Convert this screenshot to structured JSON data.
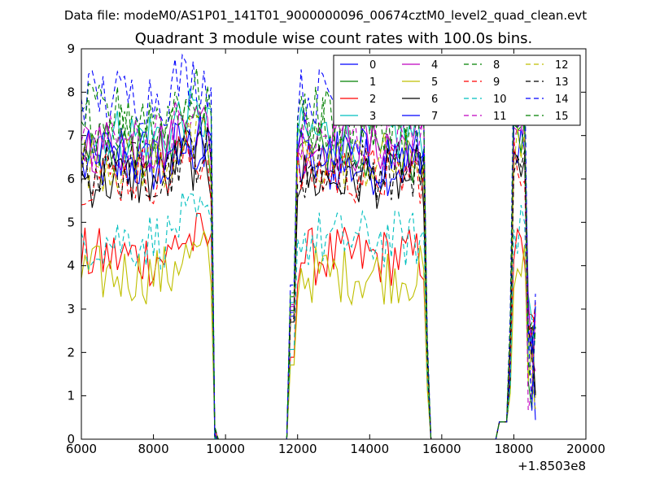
{
  "header": "Data file: modeM0/AS1P01_141T01_9000000096_00674cztM0_level2_quad_clean.evt",
  "chart_data": {
    "type": "line",
    "title": "Quadrant 3 module wise count rates with 100.0s bins.",
    "xlabel": "",
    "ylabel": "",
    "xlim": [
      6000,
      20000
    ],
    "ylim": [
      0,
      9
    ],
    "x_offset_label": "+1.8503e8",
    "xticks": [
      "6000",
      "8000",
      "10000",
      "12000",
      "14000",
      "16000",
      "18000",
      "20000"
    ],
    "yticks": [
      "0",
      "1",
      "2",
      "3",
      "4",
      "5",
      "6",
      "7",
      "8",
      "9"
    ],
    "legend_position": "top-right",
    "bin_width_s": 100,
    "segments": [
      {
        "start": 6000,
        "end": 9600
      },
      {
        "start": 12000,
        "end": 15500
      },
      {
        "start": 17900,
        "end": 18300
      }
    ],
    "series": [
      {
        "name": "0",
        "color": "#0000ff",
        "dash": "solid",
        "level": 6.3
      },
      {
        "name": "1",
        "color": "#008000",
        "dash": "solid",
        "level": 6.6
      },
      {
        "name": "2",
        "color": "#ff0000",
        "dash": "solid",
        "level": 4.2
      },
      {
        "name": "3",
        "color": "#00bfbf",
        "dash": "solid",
        "level": 7.0
      },
      {
        "name": "4",
        "color": "#bf00bf",
        "dash": "solid",
        "level": 6.8
      },
      {
        "name": "5",
        "color": "#bfbf00",
        "dash": "solid",
        "level": 3.8
      },
      {
        "name": "6",
        "color": "#000000",
        "dash": "solid",
        "level": 6.0
      },
      {
        "name": "7",
        "color": "#0000ff",
        "dash": "solid",
        "level": 6.5
      },
      {
        "name": "8",
        "color": "#008000",
        "dash": "dashed",
        "level": 7.3
      },
      {
        "name": "9",
        "color": "#ff0000",
        "dash": "dashed",
        "level": 6.1
      },
      {
        "name": "10",
        "color": "#00bfbf",
        "dash": "dashed",
        "level": 4.6
      },
      {
        "name": "11",
        "color": "#bf00bf",
        "dash": "dashed",
        "level": 6.9
      },
      {
        "name": "12",
        "color": "#bfbf00",
        "dash": "dashed",
        "level": 6.4
      },
      {
        "name": "13",
        "color": "#000000",
        "dash": "dashed",
        "level": 6.2
      },
      {
        "name": "14",
        "color": "#0000ff",
        "dash": "dashed",
        "level": 7.9
      },
      {
        "name": "15",
        "color": "#008000",
        "dash": "dashed",
        "level": 7.5
      }
    ]
  }
}
